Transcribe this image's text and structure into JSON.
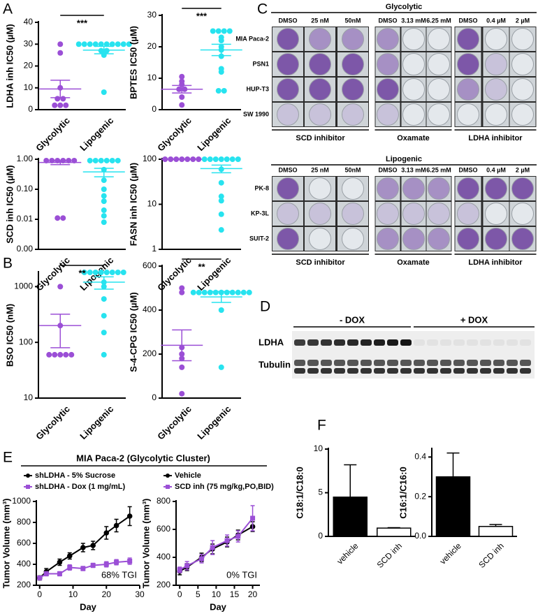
{
  "panel_labels": [
    "A",
    "B",
    "C",
    "D",
    "E",
    "F"
  ],
  "e_title": "MIA Paca-2 (Glycolytic Cluster)",
  "plates": [
    {
      "title": "Glycolytic",
      "columns": [
        "DMSO",
        "25 nM",
        "50nM",
        "DMSO",
        "3.13 mM",
        "6.25 mM",
        "DMSO",
        "0.4 µM",
        "2 µM"
      ],
      "rows": [
        "MIA Paca-2",
        "PSN1",
        "HUP-T3",
        "SW 1990"
      ],
      "treatments": [
        "SCD inhibitor",
        "Oxamate",
        "LDHA inhibitor"
      ]
    },
    {
      "title": "Lipogenic",
      "columns": [
        "DMSO",
        "25 nM",
        "50nM",
        "DMSO",
        "3.13 mM",
        "6.25 mM",
        "DMSO",
        "0.4 µM",
        "2 µM"
      ],
      "rows": [
        "PK-8",
        "KP-3L",
        "SUIT-2"
      ],
      "treatments": [
        "SCD inhibitor",
        "Oxamate",
        "LDHA inhibitor"
      ]
    }
  ],
  "blot": {
    "conditions": [
      "- DOX",
      "+ DOX"
    ],
    "proteins": [
      "LDHA",
      "Tubulin"
    ]
  },
  "chart_data": [
    {
      "type": "dot",
      "ylabel": "LDHA inh IC50 (µM)",
      "ylim": [
        0,
        40
      ],
      "yticks": [
        0,
        10,
        20,
        30,
        40
      ],
      "significance": "***",
      "series": [
        {
          "name": "Glycolytic",
          "color": "#9b4fd6",
          "values": [
            30,
            26,
            10,
            5,
            5,
            2,
            2,
            2
          ],
          "mean": 9.5,
          "sem": 4
        },
        {
          "name": "Lipogenic",
          "color": "#27e3ef",
          "values": [
            30,
            30,
            30,
            30,
            30,
            30,
            30,
            30,
            30,
            30,
            27,
            27,
            25,
            8
          ],
          "mean": 27.3,
          "sem": 1.7
        }
      ]
    },
    {
      "type": "dot",
      "ylabel": "BPTES IC50 (µM)",
      "ylim": [
        0,
        30
      ],
      "yticks": [
        0,
        10,
        20,
        30
      ],
      "significance": "***",
      "series": [
        {
          "name": "Glycolytic",
          "color": "#9b4fd6",
          "values": [
            10.5,
            9,
            8,
            6.5,
            6.5,
            4,
            1.5
          ],
          "mean": 6.5,
          "sem": 1.2
        },
        {
          "name": "Lipogenic",
          "color": "#27e3ef",
          "values": [
            25,
            25,
            25,
            25,
            23,
            22,
            20,
            19,
            17,
            13,
            12,
            6,
            6
          ],
          "mean": 19,
          "sem": 1.8
        }
      ]
    },
    {
      "type": "dot",
      "ylabel": "SCD inh IC50 (µM)",
      "log": true,
      "ylim": [
        0.001,
        1
      ],
      "yticks": [
        {
          "value": 0.001,
          "label": "0.00"
        },
        {
          "value": 0.01,
          "label": "0.01"
        },
        {
          "value": 0.1,
          "label": "0.10"
        },
        {
          "value": 1,
          "label": "1.00"
        }
      ],
      "series": [
        {
          "name": "Glycolytic",
          "color": "#9b4fd6",
          "values": [
            0.9,
            0.9,
            0.9,
            0.9,
            0.9,
            0.9,
            0.011,
            0.011
          ],
          "mean": 0.78,
          "sem": 0.12
        },
        {
          "name": "Lipogenic",
          "color": "#27e3ef",
          "values": [
            0.9,
            0.9,
            0.9,
            0.9,
            0.9,
            0.9,
            0.45,
            0.2,
            0.1,
            0.06,
            0.04,
            0.02,
            0.013,
            0.008
          ],
          "mean": 0.38,
          "sem": 0.12
        }
      ]
    },
    {
      "type": "dot",
      "ylabel": "FASN inh IC50 (µM)",
      "log": true,
      "ylim": [
        1,
        100
      ],
      "yticks": [
        1,
        10,
        100
      ],
      "series": [
        {
          "name": "Glycolytic",
          "color": "#9b4fd6",
          "values": [
            100,
            100,
            100,
            100,
            100,
            100,
            100
          ],
          "mean": 100,
          "sem": 0
        },
        {
          "name": "Lipogenic",
          "color": "#27e3ef",
          "values": [
            100,
            100,
            100,
            100,
            100,
            100,
            100,
            60,
            30,
            15,
            12,
            6,
            2.7
          ],
          "mean": 62,
          "sem": 12
        }
      ]
    },
    {
      "type": "dot",
      "ylabel": "BSO IC50 (nM)",
      "log": true,
      "ylim": [
        10,
        1800
      ],
      "yticks": [
        10,
        100,
        1000
      ],
      "significance": "**",
      "series": [
        {
          "name": "Glycolytic",
          "color": "#9b4fd6",
          "values": [
            1000,
            200,
            60,
            60,
            60,
            60,
            60
          ],
          "mean": 200,
          "sem": 120
        },
        {
          "name": "Lipogenic",
          "color": "#27e3ef",
          "values": [
            1800,
            1800,
            1800,
            1800,
            1800,
            1800,
            1800,
            1800,
            1200,
            1000,
            600,
            300,
            150,
            60
          ],
          "mean": 1200,
          "sem": 300
        }
      ]
    },
    {
      "type": "dot",
      "ylabel": "S-4-CPG IC50 (µM)",
      "ylim": [
        0,
        600
      ],
      "yticks": [
        0,
        200,
        400,
        600
      ],
      "significance": "**",
      "series": [
        {
          "name": "Glycolytic",
          "color": "#9b4fd6",
          "values": [
            500,
            480,
            230,
            200,
            180,
            140,
            20
          ],
          "mean": 240,
          "sem": 70
        },
        {
          "name": "Lipogenic",
          "color": "#27e3ef",
          "values": [
            480,
            480,
            480,
            480,
            480,
            480,
            480,
            480,
            480,
            480,
            480,
            400,
            140
          ],
          "mean": 460,
          "sem": 25
        }
      ]
    },
    {
      "type": "line",
      "xlabel": "Day",
      "ylabel": "Tumor Volume (mm³)",
      "xlim": [
        -1,
        30
      ],
      "xticks": [
        0,
        10,
        20,
        30
      ],
      "ylim": [
        200,
        1000
      ],
      "yticks": [
        200,
        400,
        600,
        800,
        1000
      ],
      "annotation": "68% TGI",
      "series": [
        {
          "name": "shLDHA - 5% Sucrose",
          "color": "#000000",
          "marker": "circle",
          "x": [
            0,
            2,
            6,
            9,
            13,
            16,
            20,
            23,
            27
          ],
          "values": [
            270,
            330,
            420,
            480,
            560,
            580,
            700,
            770,
            860
          ],
          "errors": [
            20,
            30,
            30,
            30,
            40,
            40,
            60,
            60,
            90
          ]
        },
        {
          "name": "shLDHA - Dox (1 mg/mL)",
          "color": "#9b4fd6",
          "marker": "square",
          "x": [
            0,
            2,
            6,
            9,
            13,
            16,
            20,
            23,
            27
          ],
          "values": [
            270,
            310,
            310,
            370,
            360,
            390,
            400,
            420,
            430
          ],
          "errors": [
            15,
            20,
            20,
            25,
            20,
            20,
            25,
            25,
            30
          ]
        }
      ]
    },
    {
      "type": "line",
      "xlabel": "Day",
      "ylabel": "Tumor Volume (mm³)",
      "xlim": [
        -1,
        22
      ],
      "xticks": [
        0,
        5,
        10,
        15,
        20
      ],
      "ylim": [
        200,
        800
      ],
      "yticks": [
        200,
        400,
        600,
        800
      ],
      "annotation": "0% TGI",
      "series": [
        {
          "name": "Vehicle",
          "color": "#000000",
          "marker": "circle",
          "x": [
            0,
            2,
            6,
            9,
            13,
            16,
            20
          ],
          "values": [
            300,
            330,
            400,
            460,
            510,
            560,
            620
          ],
          "errors": [
            25,
            25,
            30,
            35,
            35,
            35,
            35
          ]
        },
        {
          "name": "SCD inh (75 mg/kg,PO,BID)",
          "color": "#9b4fd6",
          "marker": "square",
          "x": [
            0,
            2,
            6,
            9,
            13,
            16,
            20
          ],
          "values": [
            310,
            340,
            390,
            470,
            520,
            550,
            680
          ],
          "errors": [
            20,
            30,
            30,
            50,
            40,
            40,
            90
          ]
        }
      ]
    },
    {
      "type": "bar",
      "ylabel": "C18:1/C18:0",
      "categories": [
        "vehicle",
        "SCD inh"
      ],
      "values": [
        4.5,
        0.95
      ],
      "errors": [
        3.7,
        0.05
      ],
      "colors": [
        "#000000",
        "#ffffff"
      ],
      "ylim": [
        0,
        10
      ],
      "yticks": [
        0,
        5,
        10
      ]
    },
    {
      "type": "bar",
      "ylabel": "C16:1/C16:0",
      "categories": [
        "vehicle",
        "SCD inh"
      ],
      "values": [
        0.3,
        0.05
      ],
      "errors": [
        0.12,
        0.01
      ],
      "colors": [
        "#000000",
        "#ffffff"
      ],
      "ylim": [
        0,
        0.44
      ],
      "yticks": [
        {
          "value": 0,
          "label": "0.0"
        },
        0.2,
        0.4
      ]
    }
  ]
}
